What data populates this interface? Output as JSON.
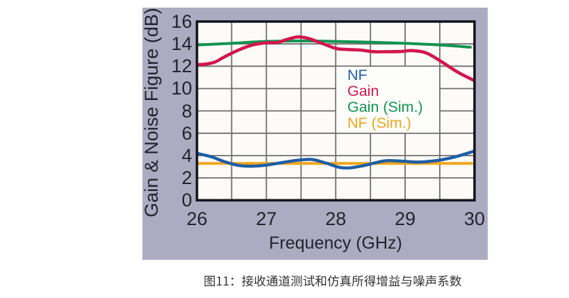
{
  "page": {
    "background": "#ffffff"
  },
  "panel": {
    "background": "#adabc1"
  },
  "chart_data": {
    "type": "line",
    "title": "",
    "xlabel": "Frequency (GHz)",
    "ylabel": "Gain & Noise Figure (dB)",
    "xlim": [
      26,
      30
    ],
    "ylim": [
      0,
      16
    ],
    "x_ticks": [
      26,
      27,
      28,
      29,
      30
    ],
    "y_ticks": [
      0,
      2,
      4,
      6,
      8,
      10,
      12,
      14,
      16
    ],
    "x_gridlines": [
      26.5,
      27,
      27.5,
      28,
      28.5,
      29,
      29.5
    ],
    "y_gridlines": [
      2,
      4,
      6,
      8,
      10,
      12,
      14
    ],
    "grid": true,
    "legend_position": "center-right",
    "series": [
      {
        "name": "NF",
        "color": "#1e5ea6",
        "x": [
          26,
          26.2,
          26.4,
          26.6,
          26.8,
          27.0,
          27.2,
          27.45,
          27.65,
          27.85,
          28.05,
          28.2,
          28.4,
          28.6,
          28.75,
          29.0,
          29.2,
          29.45,
          29.7,
          30.0
        ],
        "y": [
          4.2,
          3.9,
          3.45,
          3.12,
          3.05,
          3.15,
          3.35,
          3.58,
          3.65,
          3.35,
          2.95,
          2.9,
          3.1,
          3.4,
          3.55,
          3.48,
          3.42,
          3.55,
          3.85,
          4.4
        ]
      },
      {
        "name": "Gain",
        "color": "#d2174e",
        "x": [
          26,
          26.1,
          26.25,
          26.4,
          26.6,
          26.8,
          27.0,
          27.15,
          27.3,
          27.45,
          27.6,
          27.8,
          28.0,
          28.15,
          28.35,
          28.55,
          28.75,
          28.95,
          29.1,
          29.3,
          29.5,
          29.75,
          30.0
        ],
        "y": [
          12.15,
          12.17,
          12.35,
          12.85,
          13.45,
          13.9,
          14.1,
          14.12,
          14.4,
          14.62,
          14.5,
          14.05,
          13.6,
          13.5,
          13.45,
          13.3,
          13.3,
          13.32,
          13.4,
          13.2,
          12.5,
          11.5,
          10.7
        ]
      },
      {
        "name": "Gain (Sim.)",
        "color": "#0f9450",
        "x": [
          26,
          26.5,
          27.0,
          27.5,
          28.0,
          28.5,
          29.0,
          29.5,
          29.94
        ],
        "y": [
          13.9,
          14.05,
          14.22,
          14.27,
          14.22,
          14.15,
          14.05,
          13.9,
          13.7
        ]
      },
      {
        "name": "NF (Sim.)",
        "color": "#f0a51c",
        "x": [
          26,
          29.96
        ],
        "y": [
          3.3,
          3.3
        ]
      }
    ]
  },
  "caption": {
    "text": "图11：接收通道测试和仿真所得增益与噪声系数"
  }
}
